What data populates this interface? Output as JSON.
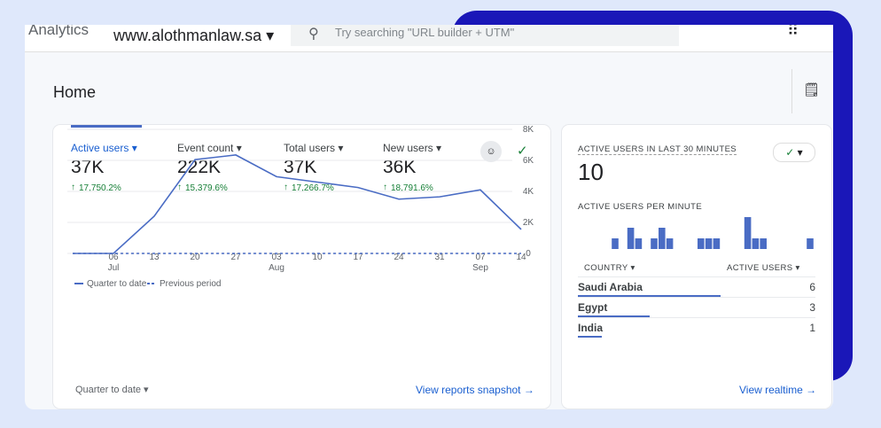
{
  "header": {
    "product": "Analytics",
    "property": "www.alothmanlaw.sa",
    "search_placeholder": "Try searching \"URL builder + UTM\""
  },
  "page_title": "Home",
  "metrics": [
    {
      "label": "Active users",
      "value": "37K",
      "change": "17,750.2%"
    },
    {
      "label": "Event count",
      "value": "222K",
      "change": "15,379.6%"
    },
    {
      "label": "Total users",
      "value": "37K",
      "change": "17,266.7%"
    },
    {
      "label": "New users",
      "value": "36K",
      "change": "18,791.6%"
    }
  ],
  "chart_data": [
    {
      "type": "line",
      "categories": [
        null,
        "06",
        "13",
        "20",
        "27",
        "03",
        "10",
        "17",
        "24",
        "31",
        "07",
        "14"
      ],
      "category_months": [
        null,
        "Jul",
        null,
        null,
        null,
        "Aug",
        null,
        null,
        null,
        null,
        "Sep",
        null
      ],
      "series": [
        {
          "name": "Quarter to date",
          "color": "#4a6cc4",
          "values": [
            0,
            0,
            2400,
            6050,
            6350,
            4950,
            4600,
            4250,
            3500,
            3650,
            4100,
            1550
          ]
        },
        {
          "name": "Previous period",
          "color": "#4a6cc4",
          "dashed": true,
          "values": [
            0,
            0,
            0,
            0,
            0,
            0,
            0,
            0,
            0,
            0,
            0,
            0
          ]
        }
      ],
      "ylim": [
        0,
        8000
      ],
      "yticks": [
        {
          "value": 0,
          "label": "0"
        },
        {
          "value": 2000,
          "label": "2K"
        },
        {
          "value": 4000,
          "label": "4K"
        },
        {
          "value": 6000,
          "label": "6K"
        },
        {
          "value": 8000,
          "label": "8K"
        }
      ],
      "grid": true,
      "legend": "bottom-left"
    },
    {
      "type": "bar",
      "title": "ACTIVE USERS PER MINUTE",
      "color": "#4a6cc4",
      "values": [
        0,
        0,
        0,
        0,
        1,
        0,
        2,
        1,
        0,
        1,
        2,
        1,
        0,
        0,
        0,
        1,
        1,
        1,
        0,
        0,
        0,
        3,
        1,
        1,
        0,
        0,
        0,
        0,
        0,
        1
      ],
      "ylim": [
        0,
        3
      ]
    }
  ],
  "footer_left": "Quarter to date",
  "footer_link": "View reports snapshot",
  "realtime": {
    "title": "ACTIVE USERS IN LAST 30 MINUTES",
    "value": "10",
    "col_country": "COUNTRY",
    "col_users": "ACTIVE USERS",
    "rows": [
      {
        "country": "Saudi Arabia",
        "users": 6
      },
      {
        "country": "Egypt",
        "users": 3
      },
      {
        "country": "India",
        "users": 1
      }
    ],
    "link": "View realtime"
  }
}
